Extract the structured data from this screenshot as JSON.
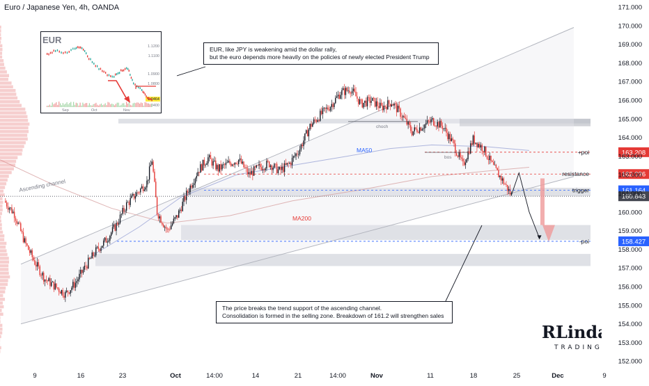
{
  "title": "Euro / Japanese Yen, 4h, OANDA",
  "chart_data": {
    "type": "candlestick",
    "symbol": "EUR/JPY",
    "interval": "4h",
    "source": "OANDA",
    "y_axis": {
      "ticks": [
        "171.000",
        "170.000",
        "169.000",
        "168.000",
        "167.000",
        "166.000",
        "165.000",
        "164.000",
        "163.000",
        "162.000",
        "161.000",
        "160.000",
        "159.000",
        "158.000",
        "157.000",
        "156.000",
        "155.000",
        "154.000",
        "153.000",
        "152.000"
      ],
      "range": [
        151.8,
        171.3
      ]
    },
    "x_axis": {
      "ticks": [
        "9",
        "16",
        "23",
        "Oct",
        "14:00",
        "14",
        "21",
        "14:00",
        "Nov",
        "11",
        "18",
        "25",
        "Dec",
        "9"
      ]
    },
    "price_levels": [
      {
        "label": "+poi",
        "value": "163.208",
        "color": "#e53935"
      },
      {
        "label": "resistance",
        "value": "162.036",
        "color": "#e53935"
      },
      {
        "label": "trigger",
        "value": "161.164",
        "color": "#2962ff"
      },
      {
        "label": "",
        "value": "160.843",
        "color": "#434651"
      },
      {
        "label": "-poi",
        "value": "158.427",
        "color": "#2962ff"
      }
    ],
    "indicators": [
      {
        "name": "MA50",
        "color": "#2962ff"
      },
      {
        "name": "MA200",
        "color": "#e53935"
      }
    ],
    "pattern_labels": [
      "Ascending channel",
      "choch",
      "bos"
    ],
    "price_path": [
      [
        0,
        160.6
      ],
      [
        8,
        159.9
      ],
      [
        16,
        158.4
      ],
      [
        24,
        157.3
      ],
      [
        32,
        156.4
      ],
      [
        40,
        156.0
      ],
      [
        48,
        155.6
      ],
      [
        56,
        156.2
      ],
      [
        64,
        157.1
      ],
      [
        72,
        157.9
      ],
      [
        80,
        158.5
      ],
      [
        88,
        159.3
      ],
      [
        96,
        160.4
      ],
      [
        104,
        161.0
      ],
      [
        112,
        161.6
      ],
      [
        116,
        162.8
      ],
      [
        120,
        160.0
      ],
      [
        128,
        159.0
      ],
      [
        136,
        159.8
      ],
      [
        144,
        161.1
      ],
      [
        152,
        162.2
      ],
      [
        160,
        162.9
      ],
      [
        168,
        162.3
      ],
      [
        176,
        162.6
      ],
      [
        184,
        162.8
      ],
      [
        192,
        162.0
      ],
      [
        200,
        162.4
      ],
      [
        208,
        162.6
      ],
      [
        216,
        162.2
      ],
      [
        224,
        162.6
      ],
      [
        232,
        163.4
      ],
      [
        240,
        164.6
      ],
      [
        248,
        165.2
      ],
      [
        256,
        165.7
      ],
      [
        264,
        166.4
      ],
      [
        272,
        166.6
      ],
      [
        280,
        165.8
      ],
      [
        288,
        166.0
      ],
      [
        296,
        165.6
      ],
      [
        304,
        165.9
      ],
      [
        312,
        165.2
      ],
      [
        320,
        164.3
      ],
      [
        328,
        164.6
      ],
      [
        336,
        164.9
      ],
      [
        344,
        164.6
      ],
      [
        352,
        163.7
      ],
      [
        360,
        162.5
      ],
      [
        368,
        163.9
      ],
      [
        376,
        163.4
      ],
      [
        384,
        162.4
      ],
      [
        392,
        161.6
      ],
      [
        398,
        160.9
      ]
    ],
    "projection": [
      [
        398,
        160.9
      ],
      [
        404,
        162.1
      ],
      [
        412,
        160.0
      ],
      [
        420,
        158.6
      ]
    ],
    "projection_target": "158.427",
    "annotations": [
      "EUR, like JPY is weakening amid the dollar rally, but the euro depends more heavily on the policies of newly elected President Trump",
      "The price breaks the trend support of the ascending channel. Consolidation is formed in the selling zone. Breakdown of 161.2 will strengthen sales"
    ]
  },
  "inset": {
    "title": "EUR",
    "y_ticks": [
      "1.1200",
      "1.1100",
      "1.0900",
      "1.0800",
      "1.0464",
      "1.0400"
    ],
    "x_ticks": [
      "Sep",
      "Oct",
      "Nov"
    ]
  },
  "callouts": {
    "top_line1": "EUR, like JPY is weakening amid the dollar rally,",
    "top_line2": "but the euro depends more heavily on the policies of newly elected President Trump",
    "bottom_line1": "The price breaks the trend support of the ascending channel.",
    "bottom_line2": "Consolidation is formed in the selling zone. Breakdown of 161.2 will strengthen sales"
  },
  "logo": {
    "text": "RLinda",
    "subtext": "TRADING"
  },
  "colors": {
    "up": "#131722",
    "down": "#e53935",
    "channel": "#b2b5be",
    "zone": "#d1d4dc"
  }
}
